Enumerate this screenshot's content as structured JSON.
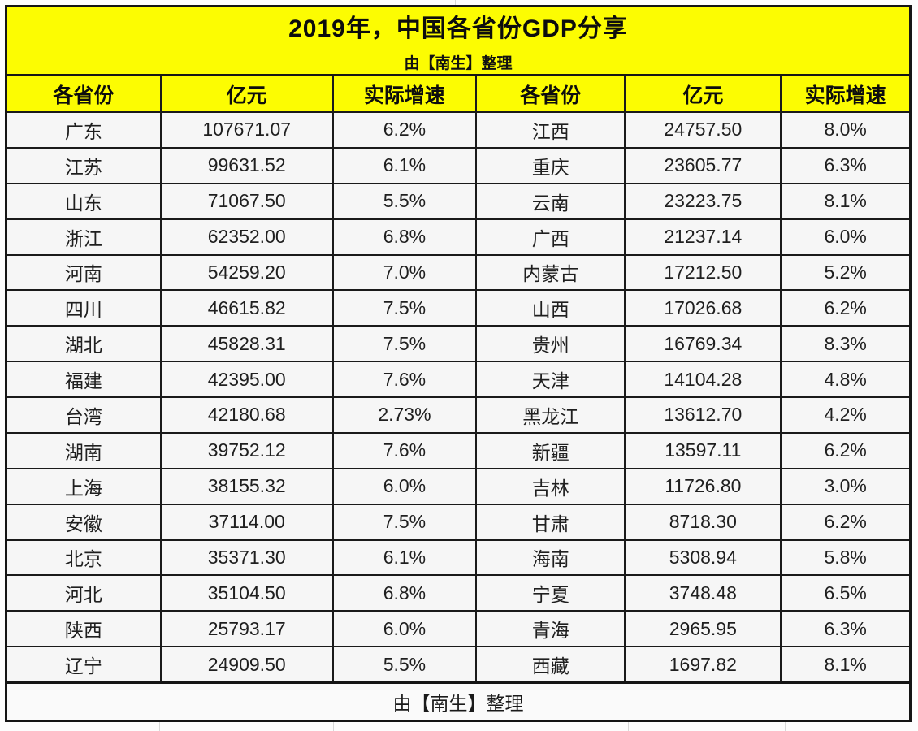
{
  "chart_data": {
    "type": "table",
    "title": "2019年，中国各省份GDP分享",
    "subtitle": "由【南生】整理",
    "footer_note": "由【南生】整理",
    "columns": [
      "各省份",
      "亿元",
      "实际增速",
      "各省份",
      "亿元",
      "实际增速"
    ],
    "rows": [
      [
        "广东",
        "107671.07",
        "6.2%",
        "江西",
        "24757.50",
        "8.0%"
      ],
      [
        "江苏",
        "99631.52",
        "6.1%",
        "重庆",
        "23605.77",
        "6.3%"
      ],
      [
        "山东",
        "71067.50",
        "5.5%",
        "云南",
        "23223.75",
        "8.1%"
      ],
      [
        "浙江",
        "62352.00",
        "6.8%",
        "广西",
        "21237.14",
        "6.0%"
      ],
      [
        "河南",
        "54259.20",
        "7.0%",
        "内蒙古",
        "17212.50",
        "5.2%"
      ],
      [
        "四川",
        "46615.82",
        "7.5%",
        "山西",
        "17026.68",
        "6.2%"
      ],
      [
        "湖北",
        "45828.31",
        "7.5%",
        "贵州",
        "16769.34",
        "8.3%"
      ],
      [
        "福建",
        "42395.00",
        "7.6%",
        "天津",
        "14104.28",
        "4.8%"
      ],
      [
        "台湾",
        "42180.68",
        "2.73%",
        "黑龙江",
        "13612.70",
        "4.2%"
      ],
      [
        "湖南",
        "39752.12",
        "7.6%",
        "新疆",
        "13597.11",
        "6.2%"
      ],
      [
        "上海",
        "38155.32",
        "6.0%",
        "吉林",
        "11726.80",
        "3.0%"
      ],
      [
        "安徽",
        "37114.00",
        "7.5%",
        "甘肃",
        "8718.30",
        "6.2%"
      ],
      [
        "北京",
        "35371.30",
        "6.1%",
        "海南",
        "5308.94",
        "5.8%"
      ],
      [
        "河北",
        "35104.50",
        "6.8%",
        "宁夏",
        "3748.48",
        "6.5%"
      ],
      [
        "陕西",
        "25793.17",
        "6.0%",
        "青海",
        "2965.95",
        "6.3%"
      ],
      [
        "辽宁",
        "24909.50",
        "5.5%",
        "西藏",
        "1697.82",
        "8.1%"
      ]
    ]
  },
  "colors": {
    "header_yellow": "#fcfc02",
    "border_black": "#151515",
    "cell_background": "#f6f6f6",
    "text": "#1f1f1f"
  }
}
